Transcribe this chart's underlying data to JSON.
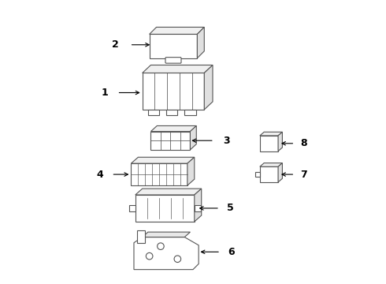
{
  "background_color": "#ffffff",
  "line_color": "#555555",
  "text_color": "#000000",
  "fig_width": 4.9,
  "fig_height": 3.6,
  "dpi": 100
}
